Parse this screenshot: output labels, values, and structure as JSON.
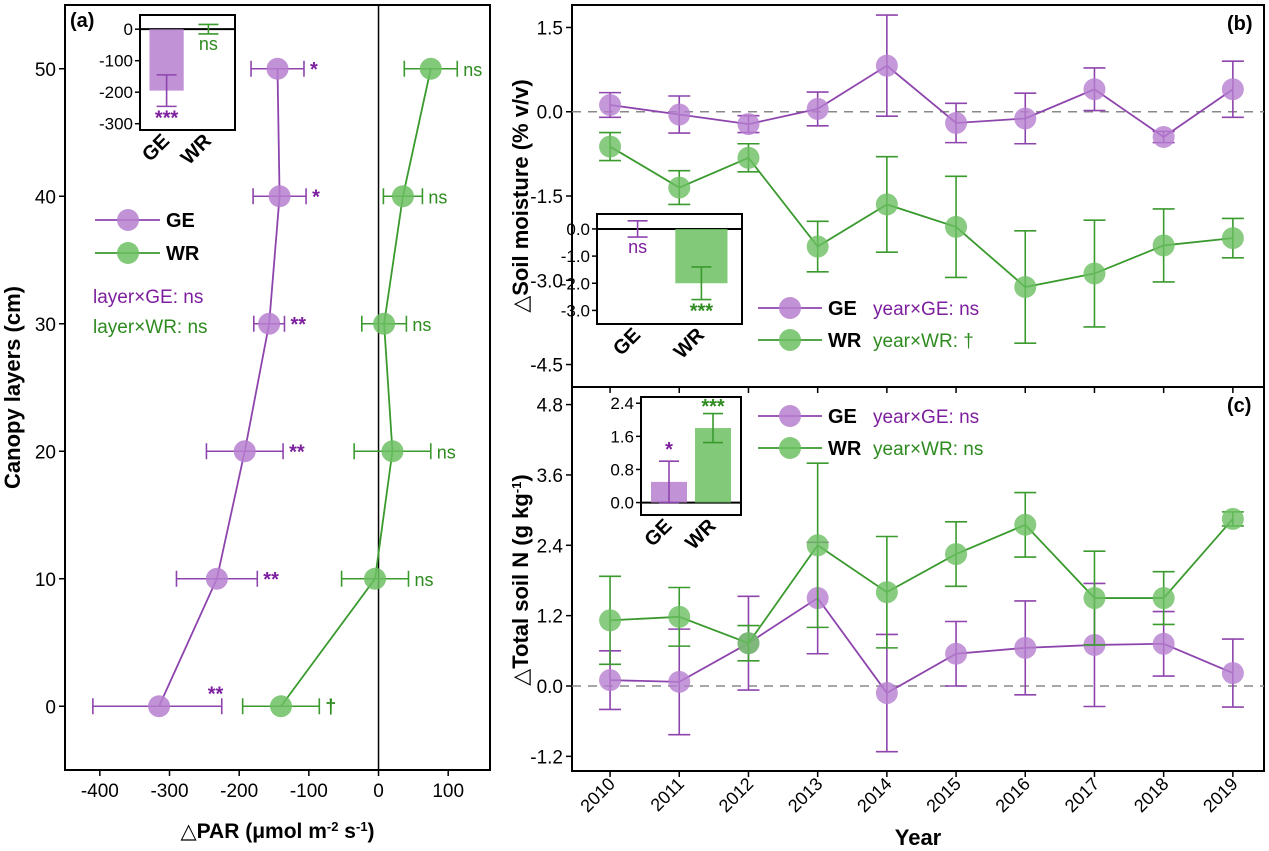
{
  "colors": {
    "ge": "#8e44ad",
    "ge_fill": "#b77fd0",
    "wr": "#3a9a2e",
    "wr_fill": "#6cbf62",
    "ge_text": "#7d1f9e",
    "wr_text": "#2e8b1f",
    "axis": "#000000",
    "ref_line": "#888888"
  },
  "chart_data": [
    {
      "panel": "a",
      "panel_label": "(a)",
      "type": "line",
      "xlabel_parts": [
        "△PAR (μmol m",
        "-2",
        " s",
        "-1",
        ")"
      ],
      "ylabel": "Canopy layers (cm)",
      "xlim": [
        -450,
        160
      ],
      "ylim": [
        -5,
        55
      ],
      "xticks": [
        -400,
        -300,
        -200,
        -100,
        0,
        100
      ],
      "yticks": [
        0,
        10,
        20,
        30,
        40,
        50
      ],
      "orientation": "horizontal-values",
      "series": [
        {
          "name": "GE",
          "y": [
            0,
            10,
            20,
            30,
            40,
            50
          ],
          "x": [
            -315,
            -232,
            -192,
            -157,
            -142,
            -145
          ],
          "err_lo": [
            95,
            58,
            55,
            22,
            38,
            38
          ],
          "err_hi": [
            90,
            58,
            55,
            22,
            38,
            38
          ],
          "sig": [
            "**",
            "**",
            "**",
            "**",
            "*",
            "*"
          ]
        },
        {
          "name": "WR",
          "y": [
            0,
            10,
            20,
            30,
            40,
            50
          ],
          "x": [
            -140,
            -5,
            20,
            8,
            35,
            75
          ],
          "err_lo": [
            55,
            48,
            55,
            32,
            28,
            38
          ],
          "err_hi": [
            55,
            48,
            55,
            32,
            28,
            38
          ],
          "sig": [
            "†",
            "ns",
            "ns",
            "ns",
            "ns",
            "ns"
          ]
        }
      ],
      "legend": [
        "GE",
        "WR"
      ],
      "annotations": [
        "layer×GE: ns",
        "layer×WR: ns"
      ],
      "inset": {
        "type": "bar",
        "categories": [
          "GE",
          "WR"
        ],
        "values": [
          -195,
          0
        ],
        "errors": [
          50,
          15
        ],
        "sig": [
          "***",
          "ns"
        ],
        "ylim": [
          -320,
          45
        ],
        "yticks": [
          0,
          -100,
          -200,
          -300
        ]
      }
    },
    {
      "panel": "b",
      "panel_label": "(b)",
      "type": "line",
      "ylabel": "△Soil moisture (% v/v)",
      "x": [
        2010,
        2011,
        2012,
        2013,
        2014,
        2015,
        2016,
        2017,
        2018,
        2019
      ],
      "ylim": [
        -4.9,
        1.9
      ],
      "yticks": [
        1.5,
        0.0,
        -1.5,
        -3.0,
        -4.5
      ],
      "series": [
        {
          "name": "GE",
          "values": [
            0.12,
            -0.05,
            -0.22,
            0.05,
            0.82,
            -0.2,
            -0.12,
            0.4,
            -0.45,
            0.4
          ],
          "errors": [
            0.22,
            0.33,
            0.15,
            0.3,
            0.9,
            0.35,
            0.45,
            0.38,
            0.1,
            0.5
          ]
        },
        {
          "name": "WR",
          "values": [
            -0.62,
            -1.35,
            -0.82,
            -2.4,
            -1.65,
            -2.05,
            -3.12,
            -2.88,
            -2.38,
            -2.25
          ],
          "errors": [
            0.25,
            0.3,
            0.25,
            0.45,
            0.85,
            0.9,
            1.0,
            0.95,
            0.65,
            0.35
          ]
        }
      ],
      "legend": [
        {
          "name": "GE",
          "note": "year×GE: ns"
        },
        {
          "name": "WR",
          "note": "year×WR: †"
        }
      ],
      "inset": {
        "type": "bar",
        "categories": [
          "GE",
          "WR"
        ],
        "values": [
          0.0,
          -2.0
        ],
        "errors": [
          0.3,
          0.6
        ],
        "sig": [
          "ns",
          "***"
        ],
        "ylim": [
          -3.5,
          0.55
        ],
        "yticks": [
          0.0,
          -1.0,
          -2.0,
          -3.0
        ],
        "ytick_labels": [
          "0.0",
          "-1.0",
          "-2.0",
          "-3.0"
        ]
      }
    },
    {
      "panel": "c",
      "panel_label": "(c)",
      "type": "line",
      "ylabel_parts": [
        "△Total soil N (g kg",
        "-1",
        ")"
      ],
      "xlabel": "Year",
      "x": [
        2010,
        2011,
        2012,
        2013,
        2014,
        2015,
        2016,
        2017,
        2018,
        2019
      ],
      "ylim": [
        -1.45,
        5.1
      ],
      "yticks": [
        4.8,
        3.6,
        2.4,
        1.2,
        0.0,
        -1.2
      ],
      "series": [
        {
          "name": "GE",
          "values": [
            0.1,
            0.07,
            0.73,
            1.5,
            -0.12,
            0.55,
            0.65,
            0.7,
            0.72,
            0.22
          ],
          "errors": [
            0.5,
            0.9,
            0.8,
            0.95,
            1.0,
            0.55,
            0.8,
            1.05,
            0.55,
            0.58
          ]
        },
        {
          "name": "WR",
          "values": [
            1.12,
            1.18,
            0.73,
            2.4,
            1.6,
            2.25,
            2.75,
            1.5,
            1.5,
            2.85
          ],
          "errors": [
            0.75,
            0.5,
            0.3,
            1.4,
            0.95,
            0.55,
            0.55,
            0.8,
            0.45,
            0.12
          ]
        }
      ],
      "legend": [
        {
          "name": "GE",
          "note": "year×GE: ns"
        },
        {
          "name": "WR",
          "note": "year×WR: ns"
        }
      ],
      "inset": {
        "type": "bar",
        "categories": [
          "GE",
          "WR"
        ],
        "values": [
          0.5,
          1.8
        ],
        "errors": [
          0.5,
          0.35
        ],
        "sig": [
          "*",
          "***"
        ],
        "ylim": [
          -0.3,
          2.55
        ],
        "yticks": [
          0.0,
          0.8,
          1.6,
          2.4
        ],
        "ytick_labels": [
          "0.0",
          "0.8",
          "1.6",
          "2.4"
        ]
      }
    }
  ]
}
